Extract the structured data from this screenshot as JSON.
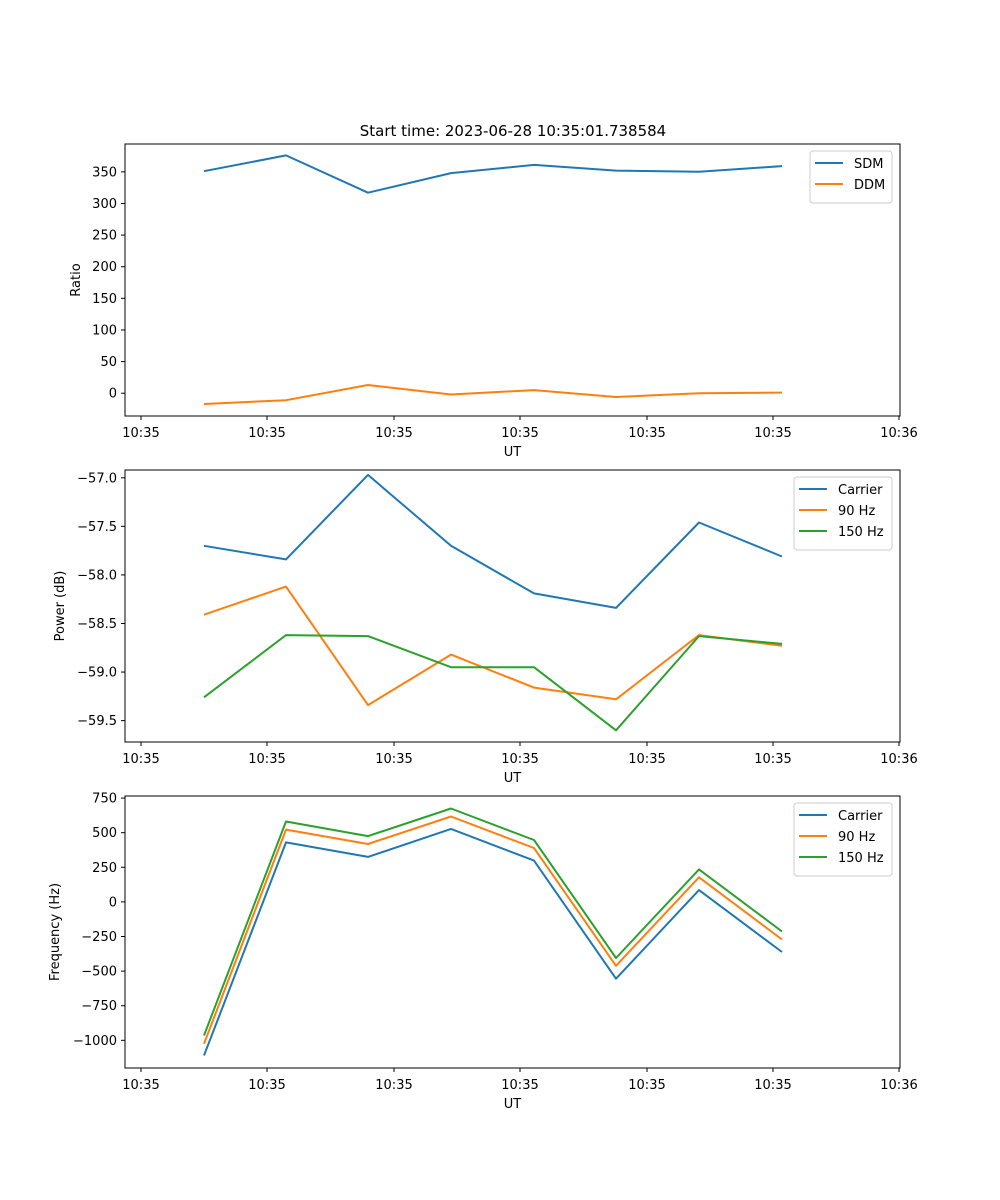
{
  "title": "Start time: 2023-06-28 10:35:01.738584",
  "colors": {
    "blue": "#1f77b4",
    "orange": "#ff7f0e",
    "green": "#2ca02c"
  },
  "x_tick_labels": [
    "10:35",
    "10:35",
    "10:35",
    "10:35",
    "10:35",
    "10:35",
    "10:35",
    "10:36"
  ],
  "chart_data": [
    {
      "type": "line",
      "xlabel": "UT",
      "ylabel": "Ratio",
      "ylim": [
        -36,
        394
      ],
      "yticks": [
        0,
        50,
        100,
        150,
        200,
        250,
        300,
        350
      ],
      "ytick_labels": [
        "0",
        "50",
        "100",
        "150",
        "200",
        "250",
        "300",
        "350"
      ],
      "legend": "top-right",
      "series": [
        {
          "name": "SDM",
          "color": "#1f77b4",
          "values": [
            351,
            376,
            317,
            348,
            361,
            352,
            350,
            359
          ]
        },
        {
          "name": "DDM",
          "color": "#ff7f0e",
          "values": [
            -17,
            -11,
            13,
            -2,
            5,
            -6,
            0,
            1
          ]
        }
      ]
    },
    {
      "type": "line",
      "xlabel": "UT",
      "ylabel": "Power (dB)",
      "ylim": [
        -59.72,
        -56.92
      ],
      "yticks": [
        -57.0,
        -57.5,
        -58.0,
        -58.5,
        -59.0,
        -59.5
      ],
      "ytick_labels": [
        "−57.0",
        "−57.5",
        "−58.0",
        "−58.5",
        "−59.0",
        "−59.5"
      ],
      "legend": "top-right",
      "series": [
        {
          "name": "Carrier",
          "color": "#1f77b4",
          "values": [
            -57.7,
            -57.84,
            -56.97,
            -57.7,
            -58.19,
            -58.34,
            -57.46,
            -57.81
          ]
        },
        {
          "name": "90 Hz",
          "color": "#ff7f0e",
          "values": [
            -58.41,
            -58.12,
            -59.34,
            -58.82,
            -59.16,
            -59.28,
            -58.62,
            -58.73
          ]
        },
        {
          "name": "150 Hz",
          "color": "#2ca02c",
          "values": [
            -59.26,
            -58.62,
            -58.63,
            -58.95,
            -58.95,
            -59.6,
            -58.63,
            -58.71
          ]
        }
      ]
    },
    {
      "type": "line",
      "xlabel": "UT",
      "ylabel": "Frequency (Hz)",
      "ylim": [
        -1200,
        765
      ],
      "yticks": [
        -1000,
        -750,
        -500,
        -250,
        0,
        250,
        500,
        750
      ],
      "ytick_labels": [
        "−1000",
        "−750",
        "−500",
        "−250",
        "0",
        "250",
        "500",
        "750"
      ],
      "legend": "top-right",
      "series": [
        {
          "name": "Carrier",
          "color": "#1f77b4",
          "values": [
            -1110,
            430,
            325,
            527,
            298,
            -555,
            85,
            -362
          ]
        },
        {
          "name": "90 Hz",
          "color": "#ff7f0e",
          "values": [
            -1025,
            522,
            418,
            617,
            389,
            -462,
            178,
            -272
          ]
        },
        {
          "name": "150 Hz",
          "color": "#2ca02c",
          "values": [
            -965,
            581,
            475,
            675,
            447,
            -405,
            235,
            -214
          ]
        }
      ]
    }
  ]
}
